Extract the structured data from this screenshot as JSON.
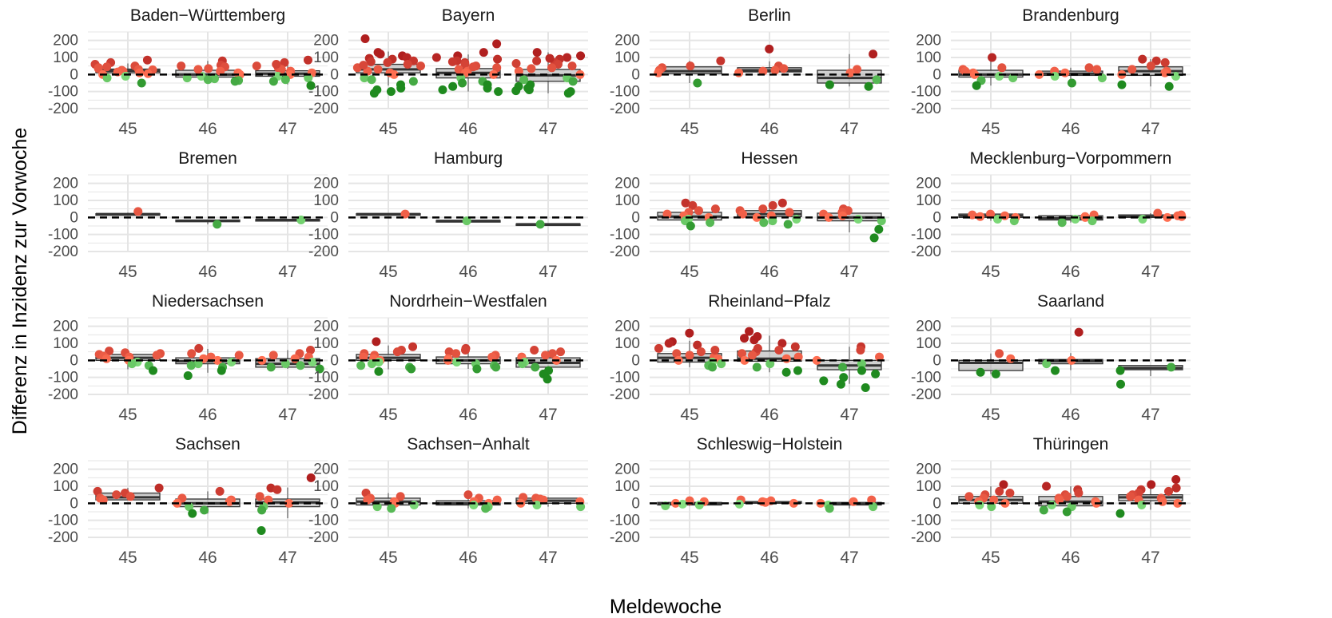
{
  "chart_data": {
    "type": "facet-box-jitter",
    "xlabel": "Meldewoche",
    "ylabel": "Differenz in Inzidenz zur Vorwoche",
    "categories": [
      "45",
      "46",
      "47"
    ],
    "ylim": [
      -200,
      250
    ],
    "yticks": [
      -200,
      -100,
      0,
      100,
      200
    ],
    "grid": true,
    "reference_line": 0,
    "colors": {
      "box_fill": "#999999",
      "box_line": "#333333",
      "grid": "#e5e5e5",
      "pos_low": "#ff6f52",
      "pos_high": "#b01f1f",
      "neg_low": "#8fe88a",
      "neg_high": "#1f8a1f"
    },
    "panels": [
      {
        "state": "Baden−Württemberg",
        "weeks": [
          {
            "week": "45",
            "box": [
              10,
              22,
              32
            ],
            "points": [
              60,
              50,
              40,
              35,
              30,
              28,
              25,
              20,
              15,
              10,
              5,
              0,
              -10,
              -20,
              -50,
              85,
              70,
              45
            ]
          },
          {
            "week": "46",
            "box": [
              -15,
              0,
              25
            ],
            "points": [
              80,
              55,
              45,
              35,
              20,
              10,
              0,
              -10,
              -20,
              -25,
              -30,
              -35,
              -40,
              50,
              30
            ]
          },
          {
            "week": "47",
            "box": [
              -10,
              5,
              22
            ],
            "points": [
              85,
              70,
              50,
              40,
              30,
              20,
              10,
              0,
              -10,
              -20,
              -30,
              -40,
              -65,
              60
            ]
          }
        ]
      },
      {
        "state": "Bayern",
        "weeks": [
          {
            "week": "45",
            "box": [
              10,
              30,
              60
            ],
            "points": [
              210,
              130,
              110,
              100,
              90,
              80,
              70,
              60,
              50,
              40,
              30,
              20,
              10,
              0,
              -20,
              -40,
              -60,
              -80,
              -100,
              -110,
              120,
              95,
              75,
              55,
              -30,
              -90
            ]
          },
          {
            "week": "46",
            "box": [
              -20,
              10,
              35
            ],
            "points": [
              180,
              130,
              110,
              90,
              80,
              70,
              60,
              50,
              40,
              30,
              20,
              10,
              0,
              -20,
              -40,
              -60,
              -80,
              -100,
              100,
              75,
              45,
              -50,
              -70,
              -90
            ]
          },
          {
            "week": "47",
            "box": [
              -40,
              -5,
              30
            ],
            "points": [
              130,
              110,
              100,
              90,
              80,
              70,
              60,
              50,
              40,
              20,
              0,
              -20,
              -40,
              -60,
              -80,
              -90,
              -100,
              -110,
              95,
              65,
              35,
              -30,
              -70,
              -95
            ]
          }
        ]
      },
      {
        "state": "Berlin",
        "weeks": [
          {
            "week": "45",
            "box": [
              5,
              20,
              45
            ],
            "points": [
              80,
              50,
              40,
              25,
              10,
              -50
            ]
          },
          {
            "week": "46",
            "box": [
              15,
              25,
              40
            ],
            "points": [
              150,
              50,
              35,
              25,
              20,
              10
            ]
          },
          {
            "week": "47",
            "box": [
              -50,
              -20,
              25
            ],
            "points": [
              120,
              30,
              10,
              -30,
              -60,
              -70
            ]
          }
        ]
      },
      {
        "state": "Brandenburg",
        "weeks": [
          {
            "week": "45",
            "box": [
              -15,
              0,
              25
            ],
            "points": [
              100,
              40,
              30,
              20,
              10,
              0,
              -10,
              -20,
              -35,
              -65
            ]
          },
          {
            "week": "46",
            "box": [
              -5,
              5,
              20
            ],
            "points": [
              40,
              30,
              20,
              10,
              0,
              -10,
              -20,
              -50
            ]
          },
          {
            "week": "47",
            "box": [
              -5,
              20,
              45
            ],
            "points": [
              90,
              80,
              70,
              50,
              30,
              20,
              10,
              0,
              -10,
              -60,
              -70
            ]
          }
        ]
      },
      {
        "state": "Bremen",
        "weeks": [
          {
            "week": "45",
            "box": [
              18,
              20,
              22
            ],
            "points": [
              35
            ]
          },
          {
            "week": "46",
            "box": [
              -25,
              -20,
              -15
            ],
            "points": [
              -40
            ]
          },
          {
            "week": "47",
            "box": [
              -18,
              -15,
              -12
            ],
            "points": [
              -15
            ]
          }
        ]
      },
      {
        "state": "Hamburg",
        "weeks": [
          {
            "week": "45",
            "box": [
              18,
              20,
              22
            ],
            "points": [
              20
            ]
          },
          {
            "week": "46",
            "box": [
              -22,
              -20,
              -18
            ],
            "points": [
              -20
            ]
          },
          {
            "week": "47",
            "box": [
              -42,
              -40,
              -38
            ],
            "points": [
              -40
            ]
          }
        ]
      },
      {
        "state": "Hessen",
        "weeks": [
          {
            "week": "45",
            "box": [
              -15,
              5,
              30
            ],
            "points": [
              85,
              70,
              50,
              40,
              30,
              20,
              10,
              0,
              -10,
              -20,
              -30,
              -50
            ]
          },
          {
            "week": "46",
            "box": [
              5,
              20,
              40
            ],
            "points": [
              85,
              70,
              50,
              40,
              30,
              20,
              10,
              0,
              -10,
              -20,
              -30,
              -40
            ]
          },
          {
            "week": "47",
            "box": [
              -20,
              0,
              25
            ],
            "points": [
              50,
              40,
              30,
              20,
              10,
              0,
              -10,
              -20,
              -70,
              -120
            ]
          }
        ]
      },
      {
        "state": "Mecklenburg−Vorpommern",
        "weeks": [
          {
            "week": "45",
            "box": [
              0,
              10,
              20
            ],
            "points": [
              20,
              15,
              10,
              5,
              0,
              -10,
              -20
            ]
          },
          {
            "week": "46",
            "box": [
              -15,
              -5,
              10
            ],
            "points": [
              15,
              5,
              0,
              -10,
              -20,
              -30
            ]
          },
          {
            "week": "47",
            "box": [
              0,
              5,
              15
            ],
            "points": [
              25,
              15,
              10,
              5,
              0,
              -10
            ]
          }
        ]
      },
      {
        "state": "Niedersachsen",
        "weeks": [
          {
            "week": "45",
            "box": [
              0,
              15,
              35
            ],
            "points": [
              55,
              45,
              40,
              35,
              30,
              25,
              20,
              10,
              0,
              -10,
              -20,
              -30,
              -60
            ]
          },
          {
            "week": "46",
            "box": [
              -20,
              -5,
              15
            ],
            "points": [
              70,
              40,
              30,
              20,
              10,
              0,
              -10,
              -20,
              -30,
              -40,
              -60,
              -90
            ]
          },
          {
            "week": "47",
            "box": [
              -40,
              -20,
              10
            ],
            "points": [
              60,
              40,
              30,
              20,
              10,
              0,
              -10,
              -20,
              -30,
              -40,
              -50
            ]
          }
        ]
      },
      {
        "state": "Nordrhein−Westfalen",
        "weeks": [
          {
            "week": "45",
            "box": [
              0,
              15,
              35
            ],
            "points": [
              110,
              80,
              60,
              50,
              40,
              30,
              20,
              10,
              0,
              -10,
              -20,
              -30,
              -40,
              -50,
              -65
            ]
          },
          {
            "week": "46",
            "box": [
              -20,
              0,
              20
            ],
            "points": [
              70,
              60,
              50,
              40,
              30,
              20,
              10,
              0,
              -10,
              -20,
              -30,
              -40,
              -50
            ]
          },
          {
            "week": "47",
            "box": [
              -40,
              -15,
              15
            ],
            "points": [
              60,
              50,
              40,
              30,
              20,
              10,
              0,
              -10,
              -20,
              -40,
              -60,
              -80,
              -110
            ]
          }
        ]
      },
      {
        "state": "Rheinland−Pfalz",
        "weeks": [
          {
            "week": "45",
            "box": [
              -10,
              15,
              40
            ],
            "points": [
              160,
              110,
              90,
              70,
              50,
              40,
              30,
              20,
              10,
              0,
              -10,
              -20,
              -30,
              -40,
              100,
              60
            ]
          },
          {
            "week": "46",
            "box": [
              -5,
              10,
              55
            ],
            "points": [
              170,
              130,
              120,
              100,
              80,
              60,
              50,
              40,
              30,
              20,
              10,
              0,
              -20,
              -40,
              -60,
              -70,
              140,
              70
            ]
          },
          {
            "week": "47",
            "box": [
              -55,
              -30,
              0
            ],
            "points": [
              80,
              60,
              20,
              0,
              -20,
              -40,
              -60,
              -80,
              -100,
              -120,
              -140,
              -160
            ]
          }
        ]
      },
      {
        "state": "Saarland",
        "weeks": [
          {
            "week": "45",
            "box": [
              -60,
              -15,
              0
            ],
            "points": [
              40,
              10,
              -70,
              -80
            ]
          },
          {
            "week": "46",
            "box": [
              -20,
              -5,
              5
            ],
            "points": [
              165,
              0,
              -20,
              -60
            ]
          },
          {
            "week": "47",
            "box": [
              -55,
              -45,
              -30
            ],
            "points": [
              -40,
              -60,
              -140
            ]
          }
        ]
      },
      {
        "state": "Sachsen",
        "weeks": [
          {
            "week": "45",
            "box": [
              20,
              35,
              60
            ],
            "points": [
              90,
              70,
              60,
              50,
              40,
              30,
              20
            ]
          },
          {
            "week": "46",
            "box": [
              -20,
              0,
              25
            ],
            "points": [
              70,
              30,
              20,
              10,
              0,
              -20,
              -40,
              -60
            ]
          },
          {
            "week": "47",
            "box": [
              -20,
              5,
              25
            ],
            "points": [
              150,
              90,
              80,
              40,
              20,
              0,
              -20,
              -40,
              -160
            ]
          }
        ]
      },
      {
        "state": "Sachsen−Anhalt",
        "weeks": [
          {
            "week": "45",
            "box": [
              -10,
              10,
              30
            ],
            "points": [
              60,
              40,
              30,
              20,
              10,
              0,
              -10,
              -20,
              -30
            ]
          },
          {
            "week": "46",
            "box": [
              -10,
              0,
              15
            ],
            "points": [
              50,
              30,
              20,
              10,
              0,
              -10,
              -20,
              -30
            ]
          },
          {
            "week": "47",
            "box": [
              0,
              15,
              30
            ],
            "points": [
              35,
              30,
              25,
              20,
              10,
              0,
              -10,
              -20
            ]
          }
        ]
      },
      {
        "state": "Schleswig−Holstein",
        "weeks": [
          {
            "week": "45",
            "box": [
              -10,
              -3,
              5
            ],
            "points": [
              15,
              10,
              0,
              -5,
              -10,
              -15
            ]
          },
          {
            "week": "46",
            "box": [
              0,
              5,
              10
            ],
            "points": [
              20,
              15,
              10,
              5,
              0,
              -5
            ]
          },
          {
            "week": "47",
            "box": [
              -10,
              -5,
              5
            ],
            "points": [
              20,
              10,
              0,
              -10,
              -20,
              -30
            ]
          }
        ]
      },
      {
        "state": "Thüringen",
        "weeks": [
          {
            "week": "45",
            "box": [
              0,
              20,
              40
            ],
            "points": [
              110,
              70,
              60,
              50,
              40,
              30,
              20,
              10,
              0,
              -10,
              -20
            ]
          },
          {
            "week": "46",
            "box": [
              -15,
              10,
              40
            ],
            "points": [
              100,
              80,
              60,
              50,
              40,
              30,
              20,
              10,
              0,
              -10,
              -20,
              -40,
              -50
            ]
          },
          {
            "week": "47",
            "box": [
              15,
              35,
              50
            ],
            "points": [
              140,
              110,
              90,
              80,
              70,
              60,
              50,
              40,
              30,
              20,
              10,
              0,
              -10,
              -60
            ]
          }
        ]
      }
    ]
  }
}
